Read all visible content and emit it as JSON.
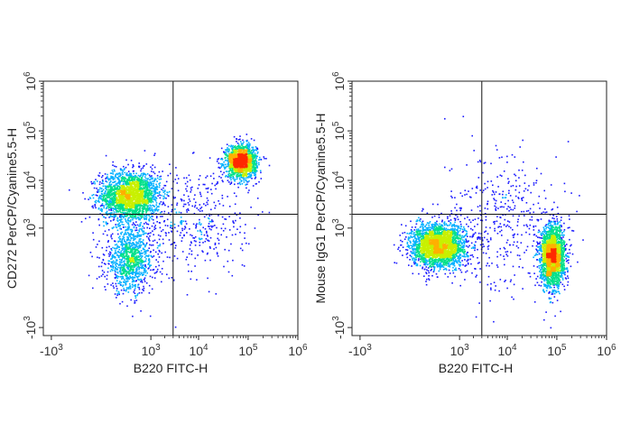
{
  "chart_data": [
    {
      "type": "scatter",
      "subtype": "flow-cytometry-density-dot-plot",
      "xlabel": "B220 FITC-H",
      "ylabel": "CD272 PerCP/Cyanine5.5-H",
      "x_scale": "biexponential",
      "y_scale": "biexponential",
      "xlim": [
        -1500,
        1000000
      ],
      "ylim": [
        -1500,
        1000000
      ],
      "x_ticks": [
        {
          "value": -1000,
          "base": "-10",
          "exp": "3"
        },
        {
          "value": 1000,
          "base": "10",
          "exp": "3"
        },
        {
          "value": 10000,
          "base": "10",
          "exp": "4"
        },
        {
          "value": 100000,
          "base": "10",
          "exp": "5"
        },
        {
          "value": 1000000,
          "base": "10",
          "exp": "6"
        }
      ],
      "y_ticks": [
        {
          "value": -1000,
          "base": "-10",
          "exp": "3"
        },
        {
          "value": 1000,
          "base": "10",
          "exp": "3"
        },
        {
          "value": 10000,
          "base": "10",
          "exp": "4"
        },
        {
          "value": 100000,
          "base": "10",
          "exp": "5"
        },
        {
          "value": 1000000,
          "base": "10",
          "exp": "6"
        }
      ],
      "gates": {
        "x": 3000,
        "y": 2000
      },
      "populations": [
        {
          "x": 300,
          "y": 5000,
          "spread_x": 0.55,
          "spread_y": 0.45,
          "weight": 0.42
        },
        {
          "x": 300,
          "y": 150,
          "spread_x": 0.45,
          "spread_y": 0.6,
          "weight": 0.2
        },
        {
          "x": 70000,
          "y": 25000,
          "spread_x": 0.28,
          "spread_y": 0.3,
          "weight": 0.3
        },
        {
          "x": 8000,
          "y": 1500,
          "spread_x": 1.0,
          "spread_y": 1.1,
          "weight": 0.08
        }
      ]
    },
    {
      "type": "scatter",
      "subtype": "flow-cytometry-density-dot-plot",
      "xlabel": "B220 FITC-H",
      "ylabel": "Mouse IgG1 PerCP/Cyanine5.5-H",
      "x_scale": "biexponential",
      "y_scale": "biexponential",
      "xlim": [
        -1500,
        1000000
      ],
      "ylim": [
        -1500,
        1000000
      ],
      "x_ticks": [
        {
          "value": -1000,
          "base": "-10",
          "exp": "3"
        },
        {
          "value": 1000,
          "base": "10",
          "exp": "3"
        },
        {
          "value": 10000,
          "base": "10",
          "exp": "4"
        },
        {
          "value": 100000,
          "base": "10",
          "exp": "5"
        },
        {
          "value": 1000000,
          "base": "10",
          "exp": "6"
        }
      ],
      "y_ticks": [
        {
          "value": -1000,
          "base": "-10",
          "exp": "3"
        },
        {
          "value": 1000,
          "base": "10",
          "exp": "3"
        },
        {
          "value": 10000,
          "base": "10",
          "exp": "4"
        },
        {
          "value": 100000,
          "base": "10",
          "exp": "5"
        },
        {
          "value": 1000000,
          "base": "10",
          "exp": "6"
        }
      ],
      "gates": {
        "x": 3000,
        "y": 2000
      },
      "populations": [
        {
          "x": 300,
          "y": 400,
          "spread_x": 0.5,
          "spread_y": 0.4,
          "weight": 0.5
        },
        {
          "x": 80000,
          "y": 200,
          "spread_x": 0.22,
          "spread_y": 0.55,
          "weight": 0.42
        },
        {
          "x": 8000,
          "y": 1500,
          "spread_x": 1.1,
          "spread_y": 1.3,
          "weight": 0.08
        }
      ]
    }
  ],
  "colors": {
    "density_scale": [
      "#1a1aff",
      "#00b0ff",
      "#00e08a",
      "#c8f000",
      "#ffb000",
      "#ff2a00"
    ],
    "axis": "#222222",
    "gate": "#111111"
  }
}
